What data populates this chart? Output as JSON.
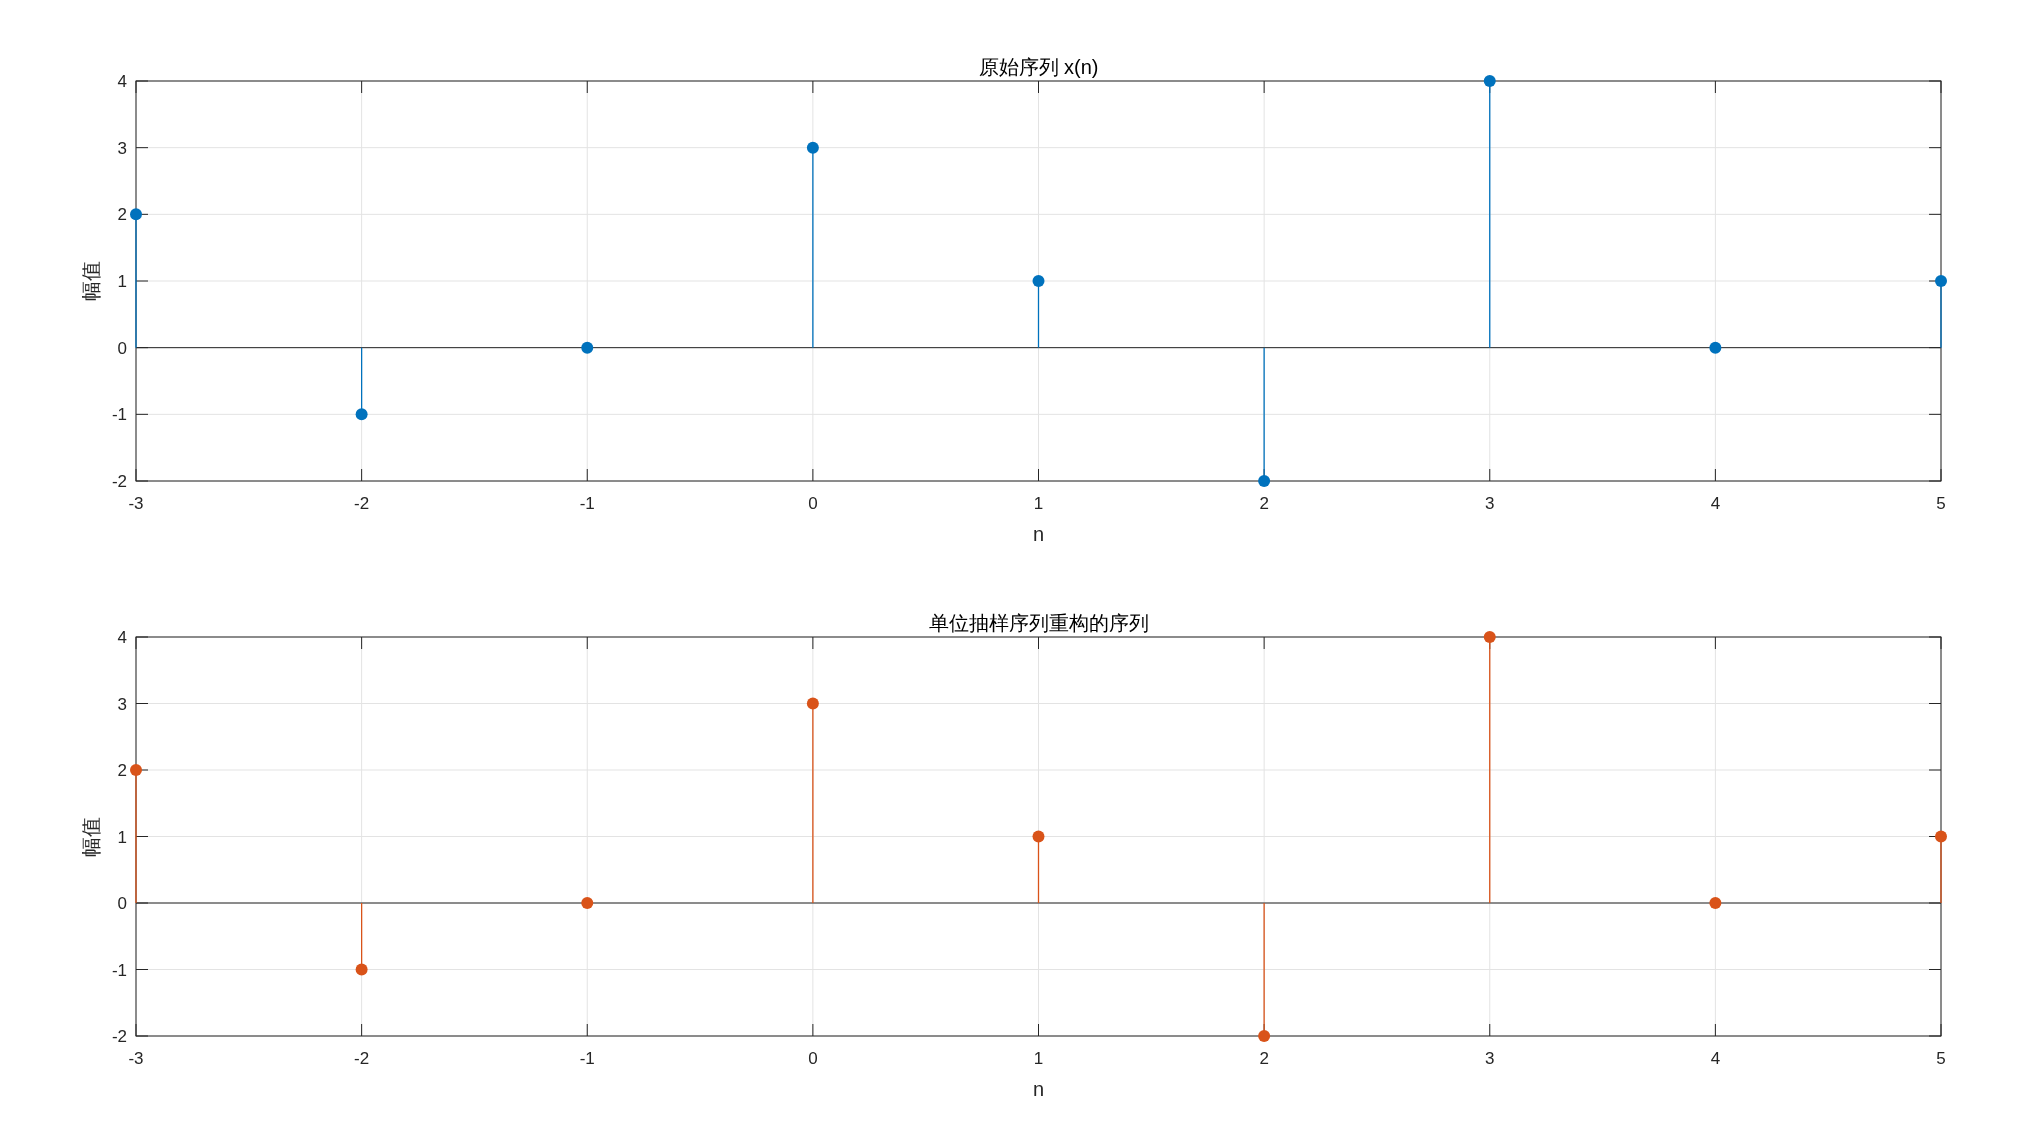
{
  "chart_data": [
    {
      "type": "lollipop",
      "title": "原始序列 x(n)",
      "xlabel": "n",
      "ylabel": "幅值",
      "x": [
        -3,
        -2,
        -1,
        0,
        1,
        2,
        3,
        4,
        5
      ],
      "xlim": [
        -3,
        5
      ],
      "ylim": [
        -2,
        4
      ],
      "xticks": [
        -3,
        -2,
        -1,
        0,
        1,
        2,
        3,
        4,
        5
      ],
      "yticks": [
        -2,
        -1,
        0,
        1,
        2,
        3,
        4
      ],
      "grid": true,
      "marker": "circle",
      "ref_lines": [
        {
          "axis": "y",
          "value": 0
        }
      ],
      "series": [
        {
          "color": "#0072bd",
          "values": [
            2,
            -1,
            0,
            3,
            1,
            -2,
            4,
            0,
            1
          ]
        }
      ]
    },
    {
      "type": "lollipop",
      "title": "单位抽样序列重构的序列",
      "xlabel": "n",
      "ylabel": "幅值",
      "x": [
        -3,
        -2,
        -1,
        0,
        1,
        2,
        3,
        4,
        5
      ],
      "xlim": [
        -3,
        5
      ],
      "ylim": [
        -2,
        4
      ],
      "xticks": [
        -3,
        -2,
        -1,
        0,
        1,
        2,
        3,
        4,
        5
      ],
      "yticks": [
        -2,
        -1,
        0,
        1,
        2,
        3,
        4
      ],
      "grid": true,
      "marker": "circle",
      "ref_lines": [
        {
          "axis": "y",
          "value": 0
        }
      ],
      "series": [
        {
          "color": "#d95319",
          "values": [
            2,
            -1,
            0,
            3,
            1,
            -2,
            4,
            0,
            1
          ]
        }
      ]
    }
  ]
}
